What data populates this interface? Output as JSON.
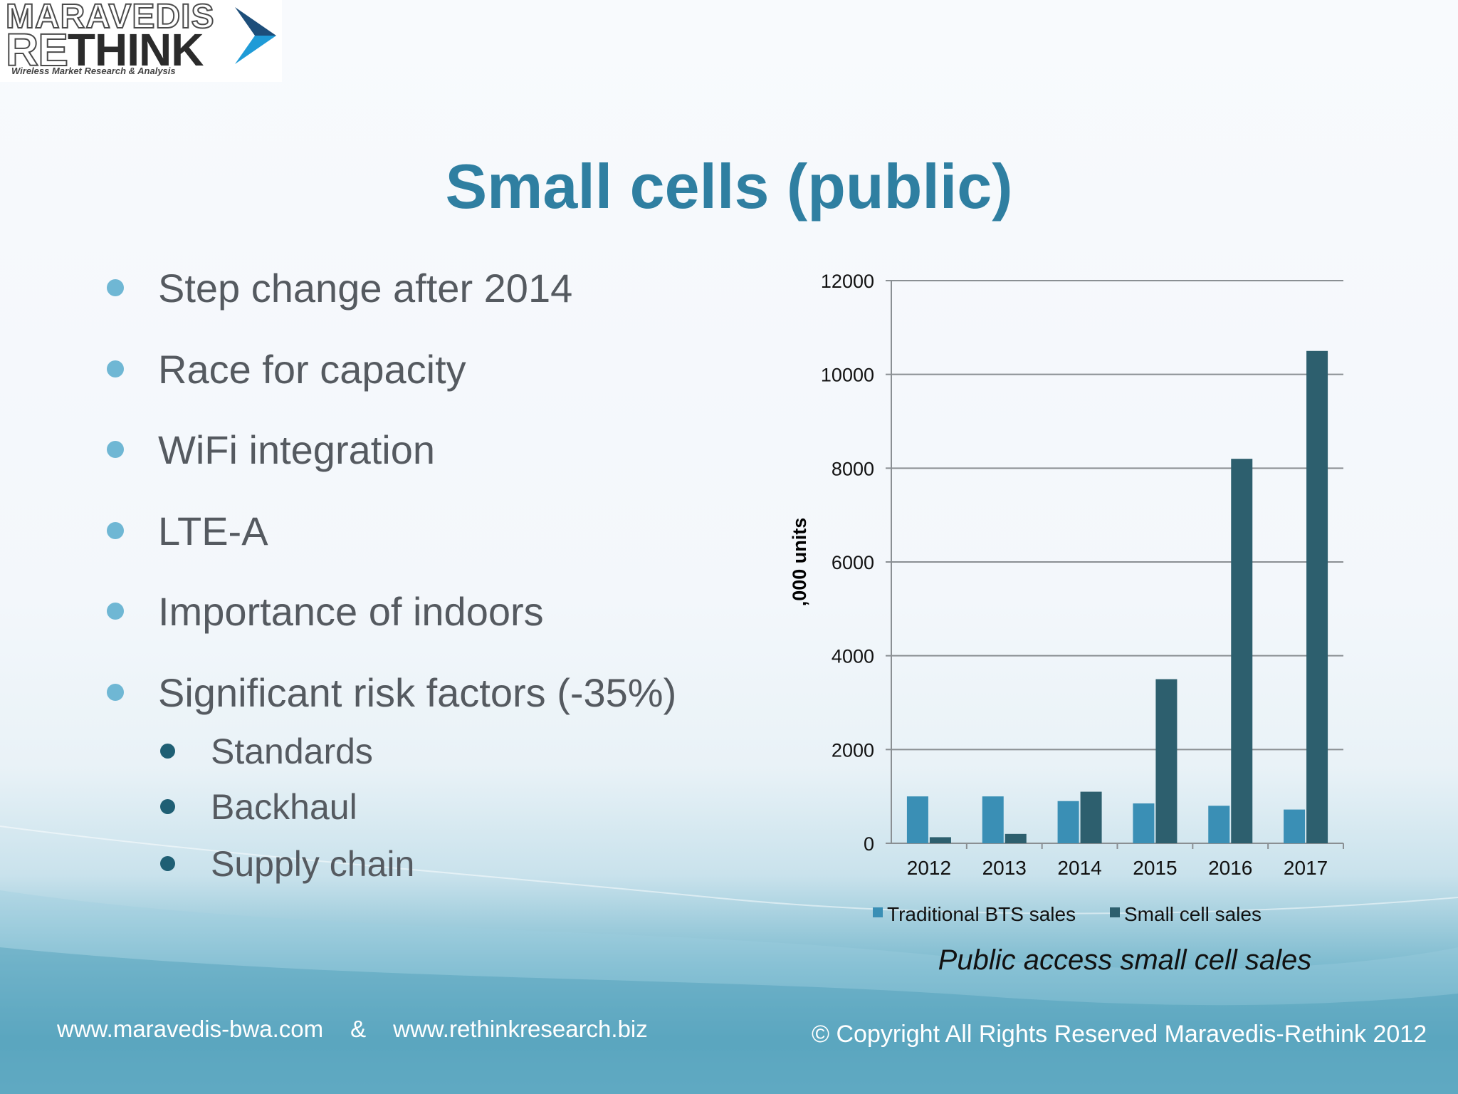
{
  "logo": {
    "line1": "MARAVEDIS",
    "line2_hollow": "RE",
    "line2_solid": "THINK",
    "tagline": "Wireless Market Research & Analysis"
  },
  "title": "Small cells (public)",
  "bullets": [
    "Step change after 2014",
    "Race for capacity",
    "WiFi integration",
    "LTE-A",
    "Importance of indoors",
    "Significant risk factors (-35%)"
  ],
  "subbullets": [
    "Standards",
    "Backhaul",
    "Supply chain"
  ],
  "colors": {
    "title": "#2f7fa1",
    "bullet_dot": "#6fb7d4",
    "subbullet_dot": "#1f5f74",
    "series_traditional": "#3a8fb5",
    "series_small": "#2d5f6e"
  },
  "chart_data": {
    "type": "bar",
    "categories": [
      "2012",
      "2013",
      "2014",
      "2015",
      "2016",
      "2017"
    ],
    "series": [
      {
        "name": "Traditional BTS sales",
        "values": [
          1000,
          1000,
          900,
          850,
          800,
          720
        ]
      },
      {
        "name": "Small cell sales",
        "values": [
          130,
          200,
          1100,
          3500,
          8200,
          10500
        ]
      }
    ],
    "ylabel": ",000 units",
    "xlabel": "",
    "ylim": [
      0,
      12000
    ],
    "yticks": [
      0,
      2000,
      4000,
      6000,
      8000,
      10000,
      12000
    ],
    "grid": true,
    "legend_position": "bottom",
    "caption": "Public access small cell sales"
  },
  "footer": {
    "url1": "www.maravedis-bwa.com",
    "amp": "&",
    "url2": "www.rethinkresearch.biz",
    "copyright": "© Copyright All Rights Reserved  Maravedis-Rethink  2012"
  }
}
